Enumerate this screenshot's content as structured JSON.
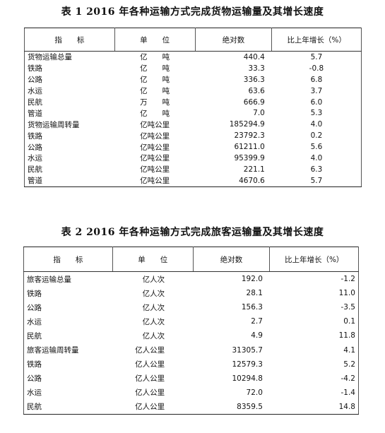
{
  "table1": {
    "title": "表 1 2016 年各种运输方式完成货物运输量及其增长速度",
    "headers": [
      "指　　标",
      "单　　位",
      "绝对数",
      "比上年增长（%）"
    ],
    "rows": [
      [
        "货物运输总量",
        "亿　　吨",
        "440.4",
        "5.7"
      ],
      [
        "铁路",
        "亿　　吨",
        "33.3",
        "-0.8"
      ],
      [
        "公路",
        "亿　　吨",
        "336.3",
        "6.8"
      ],
      [
        "水运",
        "亿　　吨",
        "63.6",
        "3.7"
      ],
      [
        "民航",
        "万　　吨",
        "666.9",
        "6.0"
      ],
      [
        "管道",
        "亿　　吨",
        "7.0",
        "5.3"
      ],
      [
        "货物运输周转量",
        "亿吨公里",
        "185294.9",
        "4.0"
      ],
      [
        "铁路",
        "亿吨公里",
        "23792.3",
        "0.2"
      ],
      [
        "公路",
        "亿吨公里",
        "61211.0",
        "5.6"
      ],
      [
        "水运",
        "亿吨公里",
        "95399.9",
        "4.0"
      ],
      [
        "民航",
        "亿吨公里",
        "221.1",
        "6.3"
      ],
      [
        "管道",
        "亿吨公里",
        "4670.6",
        "5.7"
      ]
    ]
  },
  "table2": {
    "title": "表 2 2016 年各种运输方式完成旅客运输量及其增长速度",
    "headers": [
      "指　　标",
      "单　　位",
      "绝对数",
      "比上年增长（%）"
    ],
    "rows": [
      [
        "旅客运输总量",
        "亿人次",
        "192.0",
        "-1.2"
      ],
      [
        "铁路",
        "亿人次",
        "28.1",
        "11.0"
      ],
      [
        "公路",
        "亿人次",
        "156.3",
        "-3.5"
      ],
      [
        "水运",
        "亿人次",
        "2.7",
        "0.1"
      ],
      [
        "民航",
        "亿人次",
        "4.9",
        "11.8"
      ],
      [
        "旅客运输周转量",
        "亿人公里",
        "31305.7",
        "4.1"
      ],
      [
        "铁路",
        "亿人公里",
        "12579.3",
        "5.2"
      ],
      [
        "公路",
        "亿人公里",
        "10294.8",
        "-4.2"
      ],
      [
        "水运",
        "亿人公里",
        "72.0",
        "-1.4"
      ],
      [
        "民航",
        "亿人公里",
        "8359.5",
        "14.8"
      ]
    ]
  }
}
